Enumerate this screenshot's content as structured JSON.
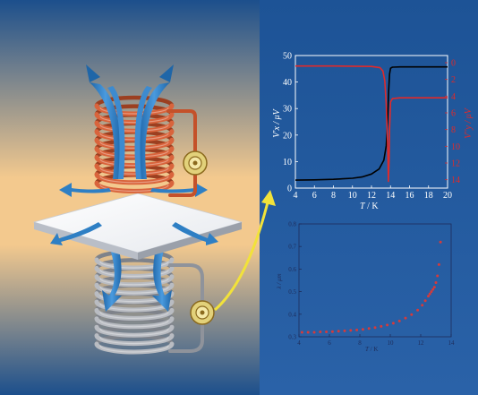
{
  "colors": {
    "left_gradient": [
      "#1c4f8c",
      "#f3c98e",
      "#1c4f8c"
    ],
    "right_gradient": [
      "#1d5396",
      "#2a62a8"
    ],
    "copper": "#d9643c",
    "steel": "#b9bcc2",
    "arrow": "#2e7fc4",
    "connector": "#f2e23a",
    "chart1_black": "#000000",
    "chart1_red": "#e02a2a",
    "chart2_points": "#d63a3a"
  },
  "chart_data": [
    {
      "type": "line",
      "xlim": [
        4,
        20
      ],
      "ylim": [
        0,
        50
      ],
      "y2lim": [
        0,
        15
      ],
      "xticks": [
        "4",
        "6",
        "8",
        "10",
        "12",
        "14",
        "16",
        "18",
        "20"
      ],
      "yticks": [
        "0",
        "10",
        "20",
        "30",
        "40",
        "50"
      ],
      "y2ticks": [
        "0",
        "2",
        "4",
        "6",
        "8",
        "10",
        "12",
        "14"
      ],
      "xlabel_italic": "T",
      "xlabel_unit": "/ K",
      "ylabel": "V'x / μV",
      "y2label": "V''y / μV",
      "y2_inverted": true,
      "series": [
        {
          "color": "#000000",
          "axis": "left",
          "x": [
            4,
            6,
            8,
            10,
            11,
            12,
            12.8,
            13.3,
            13.55,
            13.7,
            13.8,
            13.9,
            14.0,
            14.2,
            15,
            17,
            20
          ],
          "y": [
            3,
            3.1,
            3.3,
            3.7,
            4.2,
            5.3,
            7.2,
            10.5,
            16,
            26,
            36,
            43,
            45.2,
            45.6,
            45.7,
            45.7,
            45.7
          ]
        },
        {
          "color": "#e02a2a",
          "axis": "right",
          "x": [
            4,
            8,
            12,
            12.9,
            13.2,
            13.4,
            13.55,
            13.7,
            13.78,
            13.85,
            13.9,
            14.0,
            14.2,
            15,
            17,
            20
          ],
          "y": [
            0.4,
            0.4,
            0.45,
            0.6,
            1.0,
            2.2,
            5.0,
            10.0,
            14.2,
            11.5,
            8.0,
            4.7,
            4.3,
            4.2,
            4.2,
            4.2
          ]
        }
      ]
    },
    {
      "type": "scatter",
      "xlim": [
        4,
        14
      ],
      "ylim": [
        0.3,
        0.8
      ],
      "xticks": [
        "4",
        "6",
        "8",
        "10",
        "12",
        "14"
      ],
      "yticks": [
        "0.3",
        "0.4",
        "0.5",
        "0.6",
        "0.7",
        "0.8"
      ],
      "xlabel_italic": "T",
      "xlabel_unit": "/ K",
      "ylabel": "λ / μm",
      "x": [
        4.2,
        4.6,
        5,
        5.4,
        5.8,
        6.2,
        6.6,
        7,
        7.4,
        7.8,
        8.2,
        8.6,
        9,
        9.4,
        9.8,
        10.2,
        10.6,
        11,
        11.4,
        11.8,
        12.1,
        12.3,
        12.5,
        12.6,
        12.7,
        12.8,
        12.9,
        13.0,
        13.1,
        13.2,
        13.3
      ],
      "y": [
        0.32,
        0.32,
        0.32,
        0.322,
        0.322,
        0.323,
        0.325,
        0.326,
        0.328,
        0.33,
        0.333,
        0.337,
        0.341,
        0.346,
        0.352,
        0.36,
        0.37,
        0.383,
        0.398,
        0.418,
        0.44,
        0.46,
        0.48,
        0.49,
        0.5,
        0.51,
        0.52,
        0.54,
        0.57,
        0.62,
        0.72
      ]
    }
  ]
}
